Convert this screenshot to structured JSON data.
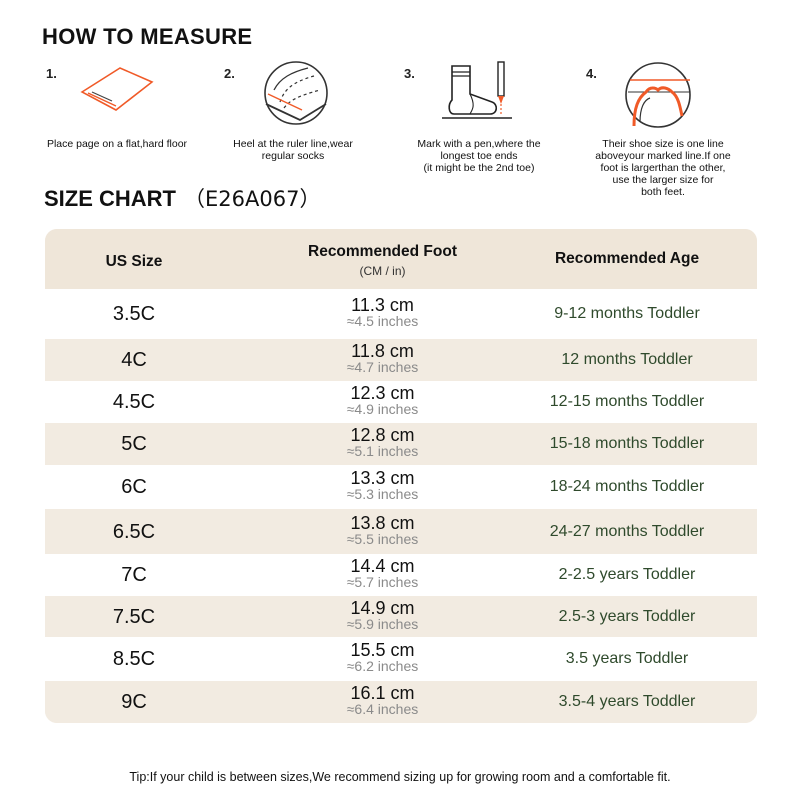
{
  "measure": {
    "title": "HOW TO MEASURE",
    "steps": [
      {
        "num": "1.",
        "icon": "paper-icon",
        "text": "Place page on a flat,hard floor"
      },
      {
        "num": "2.",
        "icon": "heel-ruler-icon",
        "text": "Heel at the ruler line,wear regular socks"
      },
      {
        "num": "3.",
        "icon": "sock-pen-icon",
        "text_lines": [
          "Mark with a pen,where the",
          "longest toe ends",
          "(it might be the 2nd toe)"
        ]
      },
      {
        "num": "4.",
        "icon": "foot-outline-icon",
        "text_lines": [
          "Their shoe size is one line",
          "aboveyour marked line.If one",
          "foot is largerthan the other,",
          "use the larger size for",
          "both feet."
        ]
      }
    ]
  },
  "size_chart": {
    "title": "SIZE CHART",
    "code": "（E26A067）",
    "headers": {
      "us_size": "US Size",
      "foot": "Recommended Foot",
      "foot_sub": "(CM / in)",
      "age": "Recommended Age"
    },
    "rows": [
      {
        "size": "3.5C",
        "cm": "11.3 cm",
        "inch": "≈4.5 inches",
        "age": "9-12 months Toddler"
      },
      {
        "size": "4C",
        "cm": "11.8 cm",
        "inch": "≈4.7 inches",
        "age": "12 months Toddler"
      },
      {
        "size": "4.5C",
        "cm": "12.3 cm",
        "inch": "≈4.9 inches",
        "age": "12-15 months Toddler"
      },
      {
        "size": "5C",
        "cm": "12.8 cm",
        "inch": "≈5.1 inches",
        "age": "15-18 months Toddler"
      },
      {
        "size": "6C",
        "cm": "13.3 cm",
        "inch": "≈5.3 inches",
        "age": "18-24 months Toddler"
      },
      {
        "size": "6.5C",
        "cm": "13.8 cm",
        "inch": "≈5.5 inches",
        "age": "24-27 months Toddler"
      },
      {
        "size": "7C",
        "cm": "14.4 cm",
        "inch": "≈5.7 inches",
        "age": "2-2.5 years Toddler"
      },
      {
        "size": "7.5C",
        "cm": "14.9 cm",
        "inch": "≈5.9 inches",
        "age": "2.5-3 years Toddler"
      },
      {
        "size": "8.5C",
        "cm": "15.5 cm",
        "inch": "≈6.2 inches",
        "age": "3.5 years Toddler"
      },
      {
        "size": "9C",
        "cm": "16.1 cm",
        "inch": "≈6.4 inches",
        "age": "3.5-4 years Toddler"
      }
    ]
  },
  "tip": "Tip:If your child is between sizes,We recommend sizing up for growing room and a comfortable fit.",
  "colors": {
    "accent": "#f05a28",
    "row_alt": "#f2ebe1",
    "age_text": "#2f4a2c"
  }
}
